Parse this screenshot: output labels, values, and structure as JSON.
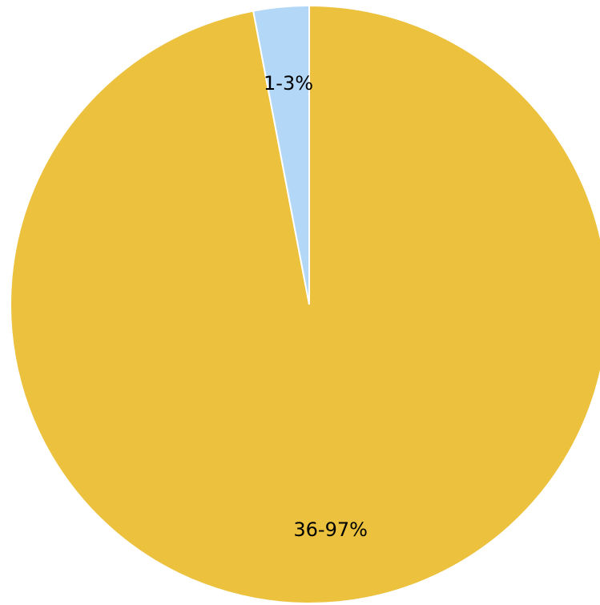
{
  "chart_data": {
    "type": "pie",
    "title": "",
    "slices": [
      {
        "label": "36-97%",
        "category": "36",
        "value": 97,
        "color": "#EBC13E"
      },
      {
        "label": "1-3%",
        "category": "1",
        "value": 3,
        "color": "#B3D8F7"
      }
    ],
    "start_angle_deg": 0,
    "direction": "clockwise",
    "legend": "none"
  }
}
